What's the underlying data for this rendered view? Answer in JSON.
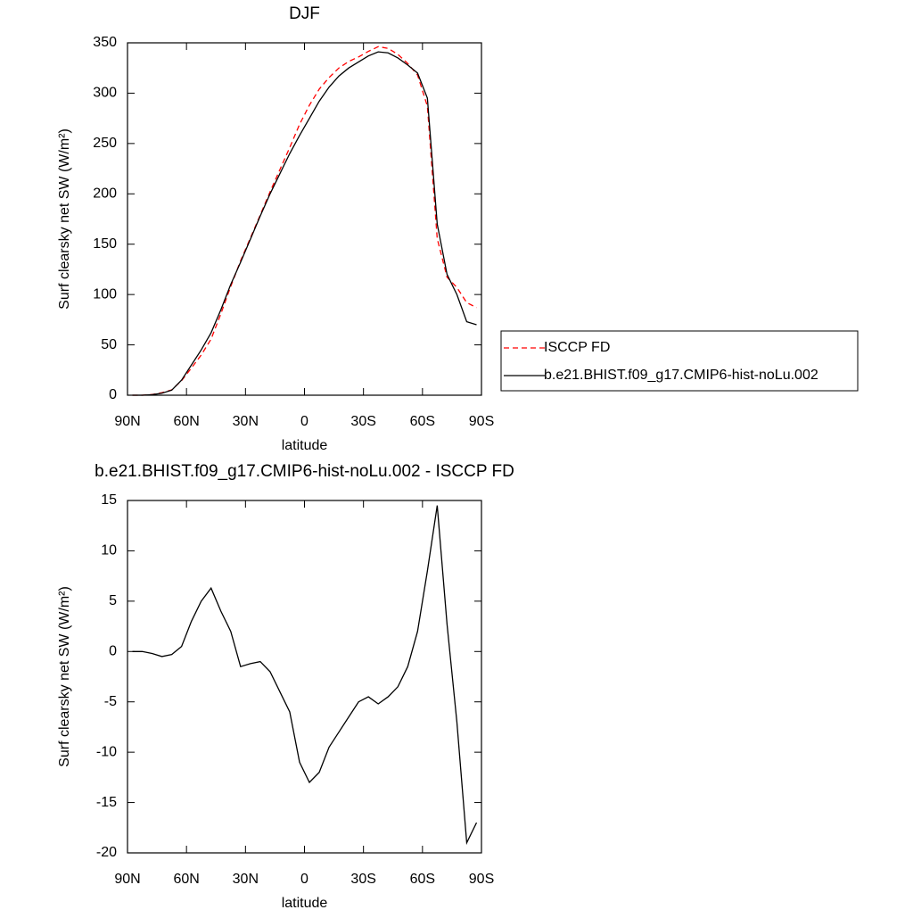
{
  "chart_data": [
    {
      "type": "line",
      "title": "DJF",
      "x_label": "latitude",
      "y_label": "Surf clearsky net SW (W/m²)",
      "x": [
        87.5,
        82.5,
        77.5,
        72.5,
        67.5,
        62.5,
        57.5,
        52.5,
        47.5,
        42.5,
        37.5,
        32.5,
        27.5,
        22.5,
        17.5,
        12.5,
        7.5,
        2.5,
        -2.5,
        -7.5,
        -12.5,
        -17.5,
        -22.5,
        -27.5,
        -32.5,
        -37.5,
        -42.5,
        -47.5,
        -52.5,
        -57.5,
        -62.5,
        -67.5,
        -72.5,
        -77.5,
        -82.5,
        -87.5
      ],
      "series": [
        {
          "name": "ISCCP FD",
          "color": "#ff0000",
          "dash": "6,4",
          "values": [
            0,
            0,
            0.7,
            2.5,
            5.3,
            14.5,
            27,
            40,
            55.7,
            81,
            108,
            133.5,
            156.2,
            179,
            202,
            224,
            246,
            269,
            288,
            304,
            315.5,
            325,
            331.5,
            336,
            341.5,
            346.2,
            344.5,
            338.5,
            329.5,
            318,
            287,
            155.5,
            117.3,
            107,
            92,
            87
          ]
        },
        {
          "name": "b.e21.BHIST.f09_g17.CMIP6-hist-noLu.002",
          "color": "#000000",
          "dash": "none",
          "values": [
            0,
            0,
            0.5,
            2,
            5,
            15,
            30,
            45,
            62,
            85,
            110,
            132,
            155,
            178,
            200,
            220,
            240,
            258,
            275,
            292,
            306,
            317,
            325,
            331,
            337,
            341,
            340,
            335,
            328,
            320,
            295,
            170,
            120,
            100,
            73,
            70
          ]
        }
      ],
      "xlim": [
        90,
        -90
      ],
      "xticks": [
        {
          "value": 90,
          "label": "90N"
        },
        {
          "value": 60,
          "label": "60N"
        },
        {
          "value": 30,
          "label": "30N"
        },
        0,
        {
          "value": -30,
          "label": "30S"
        },
        {
          "value": -60,
          "label": "60S"
        },
        {
          "value": -90,
          "label": "90S"
        }
      ],
      "ylim": [
        0,
        350
      ],
      "yticks": [
        0,
        50,
        100,
        150,
        200,
        250,
        300,
        350
      ],
      "legend": "right"
    },
    {
      "type": "line",
      "title": "b.e21.BHIST.f09_g17.CMIP6-hist-noLu.002 - ISCCP FD",
      "x_label": "latitude",
      "y_label": "Surf clearsky net SW (W/m²)",
      "x": [
        87.5,
        82.5,
        77.5,
        72.5,
        67.5,
        62.5,
        57.5,
        52.5,
        47.5,
        42.5,
        37.5,
        32.5,
        27.5,
        22.5,
        17.5,
        12.5,
        7.5,
        2.5,
        -2.5,
        -7.5,
        -12.5,
        -17.5,
        -22.5,
        -27.5,
        -32.5,
        -37.5,
        -42.5,
        -47.5,
        -52.5,
        -57.5,
        -62.5,
        -67.5,
        -72.5,
        -77.5,
        -82.5,
        -87.5
      ],
      "series": [
        {
          "color": "#000000",
          "dash": "none",
          "values": [
            0,
            0,
            -0.2,
            -0.5,
            -0.3,
            0.5,
            3,
            5,
            6.3,
            4,
            2,
            -1.5,
            -1.2,
            -1,
            -2,
            -4,
            -6,
            -11,
            -13,
            -12,
            -9.5,
            -8,
            -6.5,
            -5,
            -4.5,
            -5.2,
            -4.5,
            -3.5,
            -1.5,
            2,
            8,
            14.5,
            2.7,
            -7,
            -19,
            -17
          ]
        }
      ],
      "xlim": [
        90,
        -90
      ],
      "xticks": [
        {
          "value": 90,
          "label": "90N"
        },
        {
          "value": 60,
          "label": "60N"
        },
        {
          "value": 30,
          "label": "30N"
        },
        0,
        {
          "value": -30,
          "label": "30S"
        },
        {
          "value": -60,
          "label": "60S"
        },
        {
          "value": -90,
          "label": "90S"
        }
      ],
      "ylim": [
        -20,
        15
      ],
      "yticks": [
        -20,
        -15,
        -10,
        -5,
        0,
        5,
        10,
        15
      ]
    }
  ]
}
